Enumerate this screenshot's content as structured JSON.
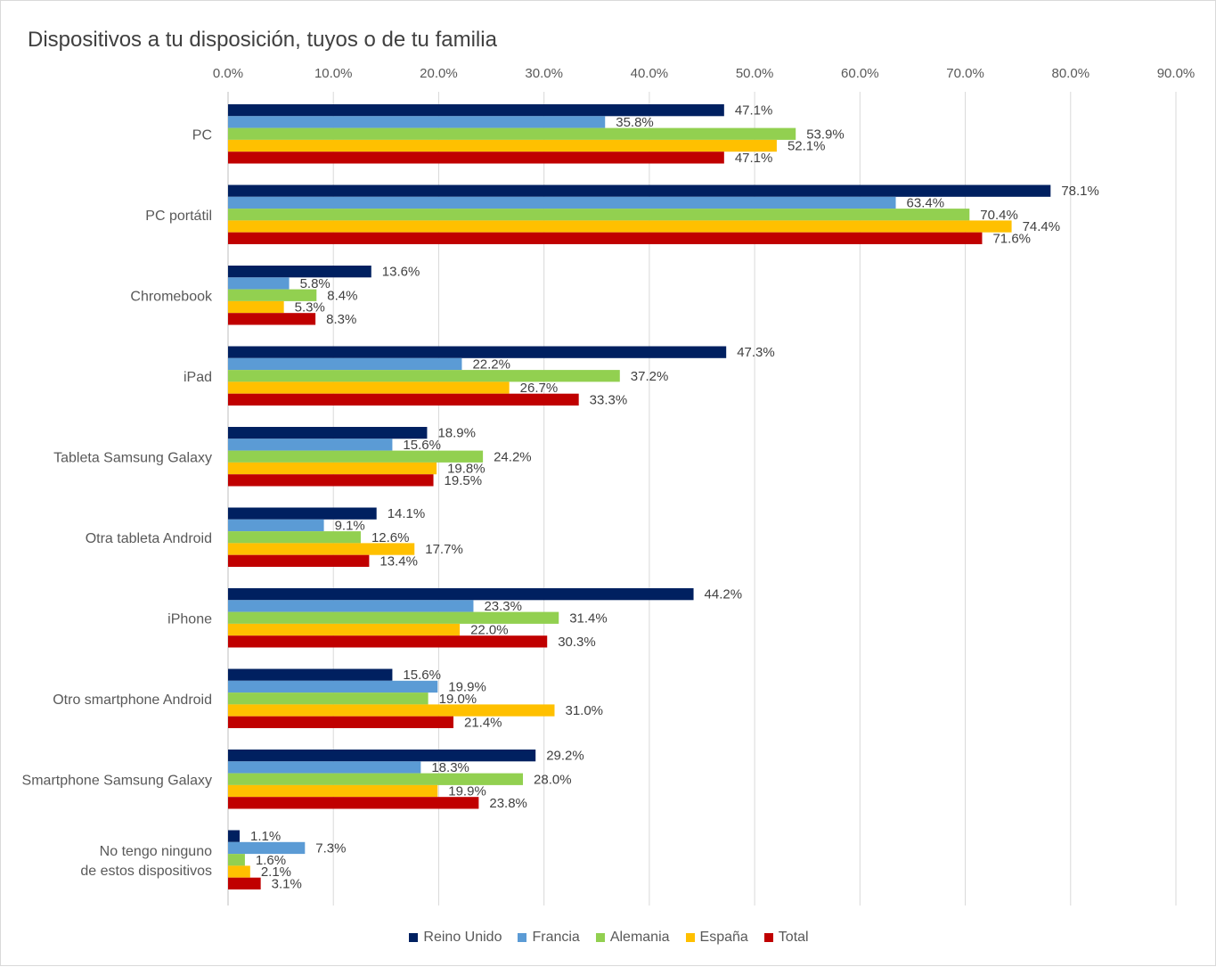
{
  "chart_data": {
    "type": "bar",
    "orientation": "horizontal",
    "title": "Dispositivos a tu disposición, tuyos o de tu familia",
    "xlim": [
      0,
      90
    ],
    "x_ticks": [
      "0.0%",
      "10.0%",
      "20.0%",
      "30.0%",
      "40.0%",
      "50.0%",
      "60.0%",
      "70.0%",
      "80.0%",
      "90.0%"
    ],
    "x_axis_position": "top",
    "grid": true,
    "legend_position": "bottom",
    "categories": [
      "PC",
      "PC portátil",
      "Chromebook",
      "iPad",
      "Tableta Samsung Galaxy",
      "Otra tableta Android",
      "iPhone",
      "Otro smartphone Android",
      "Smartphone Samsung Galaxy",
      "No tengo ninguno de estos dispositivos"
    ],
    "category_lines": [
      [
        "PC"
      ],
      [
        "PC portátil"
      ],
      [
        "Chromebook"
      ],
      [
        "iPad"
      ],
      [
        "Tableta Samsung Galaxy"
      ],
      [
        "Otra tableta Android"
      ],
      [
        "iPhone"
      ],
      [
        "Otro smartphone Android"
      ],
      [
        "Smartphone Samsung Galaxy"
      ],
      [
        "No tengo ninguno",
        "de estos dispositivos"
      ]
    ],
    "series": [
      {
        "name": "Reino Unido",
        "color": "#002060",
        "values": [
          47.1,
          78.1,
          13.6,
          47.3,
          18.9,
          14.1,
          44.2,
          15.6,
          29.2,
          1.1
        ]
      },
      {
        "name": "Francia",
        "color": "#5b9bd5",
        "values": [
          35.8,
          63.4,
          5.8,
          22.2,
          15.6,
          9.1,
          23.3,
          19.9,
          18.3,
          7.3
        ]
      },
      {
        "name": "Alemania",
        "color": "#92d050",
        "values": [
          53.9,
          70.4,
          8.4,
          37.2,
          24.2,
          12.6,
          31.4,
          19.0,
          28.0,
          1.6
        ]
      },
      {
        "name": "España",
        "color": "#ffc000",
        "values": [
          52.1,
          74.4,
          5.3,
          26.7,
          19.8,
          17.7,
          22.0,
          31.0,
          19.9,
          2.1
        ]
      },
      {
        "name": "Total",
        "color": "#c00000",
        "values": [
          47.1,
          71.6,
          8.3,
          33.3,
          19.5,
          13.4,
          30.3,
          21.4,
          23.8,
          3.1
        ]
      }
    ]
  }
}
